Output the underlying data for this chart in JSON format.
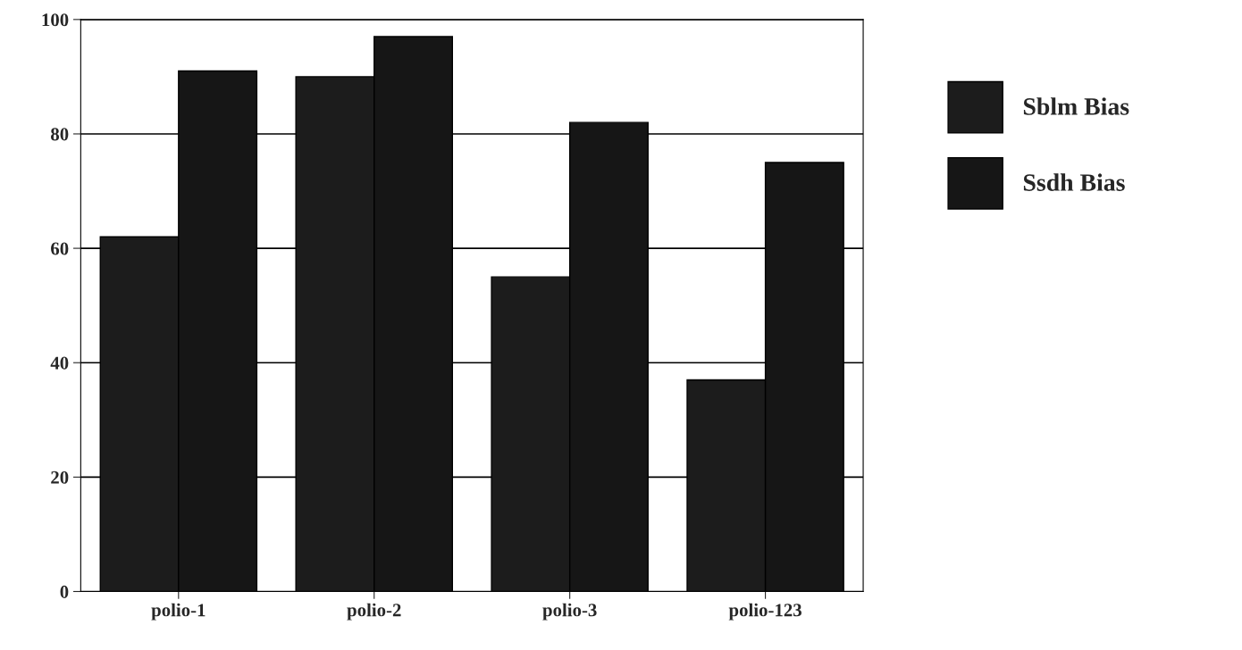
{
  "chart_data": {
    "type": "bar",
    "categories": [
      "polio-1",
      "polio-2",
      "polio-3",
      "polio-123"
    ],
    "series": [
      {
        "name": "Sblm Bias",
        "color": "#1c1c1c",
        "values": [
          62,
          90,
          55,
          37
        ]
      },
      {
        "name": "Ssdh Bias",
        "color": "#161616",
        "values": [
          91,
          97,
          82,
          75
        ]
      }
    ],
    "ylim": [
      0,
      100
    ],
    "yticks": [
      0,
      20,
      40,
      60,
      80,
      100
    ],
    "grid": "y",
    "legend": "right"
  }
}
